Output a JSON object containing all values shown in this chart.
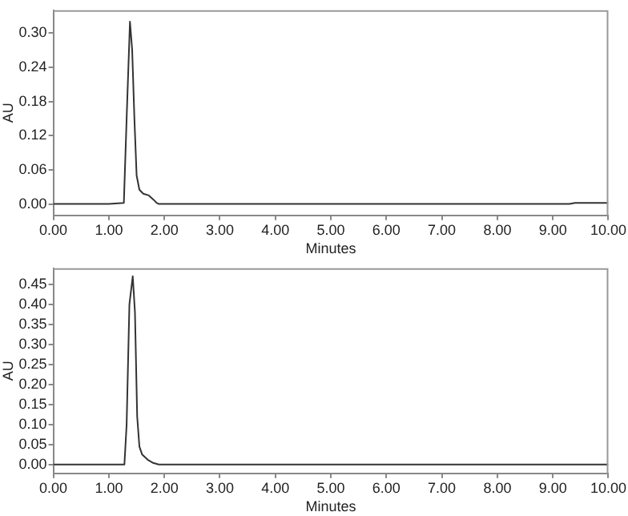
{
  "chart_data": [
    {
      "type": "line",
      "xlabel": "Minutes",
      "ylabel": "AU",
      "xlim": [
        0,
        10
      ],
      "ylim": [
        -0.02,
        0.34
      ],
      "xticks": [
        {
          "value": 0,
          "label": "0.00"
        },
        {
          "value": 1,
          "label": "1.00"
        },
        {
          "value": 2,
          "label": "2.00"
        },
        {
          "value": 3,
          "label": "3.00"
        },
        {
          "value": 4,
          "label": "4.00"
        },
        {
          "value": 5,
          "label": "5.00"
        },
        {
          "value": 6,
          "label": "6.00"
        },
        {
          "value": 7,
          "label": "7.00"
        },
        {
          "value": 8,
          "label": "8.00"
        },
        {
          "value": 9,
          "label": "9.00"
        },
        {
          "value": 10,
          "label": "10.00"
        }
      ],
      "yticks": [
        {
          "value": 0,
          "label": "0.00"
        },
        {
          "value": 0.06,
          "label": "0.06"
        },
        {
          "value": 0.12,
          "label": "0.12"
        },
        {
          "value": 0.18,
          "label": "0.18"
        },
        {
          "value": 0.24,
          "label": "0.24"
        },
        {
          "value": 0.3,
          "label": "0.30"
        }
      ],
      "grid": false,
      "legend": false,
      "marker": "none",
      "line_style": "solid",
      "series": [
        {
          "color": "#333333",
          "x": [
            0,
            1.0,
            1.27,
            1.32,
            1.38,
            1.42,
            1.46,
            1.5,
            1.55,
            1.62,
            1.72,
            1.8,
            1.86,
            1.9,
            2.1,
            9.3,
            9.4,
            10
          ],
          "values": [
            0,
            0,
            0.002,
            0.15,
            0.32,
            0.27,
            0.15,
            0.05,
            0.025,
            0.018,
            0.015,
            0.008,
            0.002,
            0,
            0,
            0,
            0.002,
            0.002
          ]
        }
      ]
    },
    {
      "type": "line",
      "xlabel": "Minutes",
      "ylabel": "AU",
      "xlim": [
        0,
        10
      ],
      "ylim": [
        -0.022,
        0.49
      ],
      "xticks": [
        {
          "value": 0,
          "label": "0.00"
        },
        {
          "value": 1,
          "label": "1.00"
        },
        {
          "value": 2,
          "label": "2.00"
        },
        {
          "value": 3,
          "label": "3.00"
        },
        {
          "value": 4,
          "label": "4.00"
        },
        {
          "value": 5,
          "label": "5.00"
        },
        {
          "value": 6,
          "label": "6.00"
        },
        {
          "value": 7,
          "label": "7.00"
        },
        {
          "value": 8,
          "label": "8.00"
        },
        {
          "value": 9,
          "label": "9.00"
        },
        {
          "value": 10,
          "label": "10.00"
        }
      ],
      "yticks": [
        {
          "value": 0,
          "label": "0.00"
        },
        {
          "value": 0.05,
          "label": "0.05"
        },
        {
          "value": 0.1,
          "label": "0.10"
        },
        {
          "value": 0.15,
          "label": "0.15"
        },
        {
          "value": 0.2,
          "label": "0.20"
        },
        {
          "value": 0.25,
          "label": "0.25"
        },
        {
          "value": 0.3,
          "label": "0.30"
        },
        {
          "value": 0.35,
          "label": "0.35"
        },
        {
          "value": 0.4,
          "label": "0.40"
        },
        {
          "value": 0.45,
          "label": "0.45"
        }
      ],
      "grid": false,
      "legend": false,
      "marker": "none",
      "line_style": "solid",
      "series": [
        {
          "color": "#333333",
          "x": [
            0,
            1.28,
            1.32,
            1.37,
            1.43,
            1.47,
            1.51,
            1.55,
            1.6,
            1.7,
            1.8,
            1.9,
            10
          ],
          "values": [
            0,
            0,
            0.1,
            0.4,
            0.47,
            0.38,
            0.12,
            0.045,
            0.025,
            0.012,
            0.004,
            0,
            0
          ]
        }
      ]
    }
  ]
}
